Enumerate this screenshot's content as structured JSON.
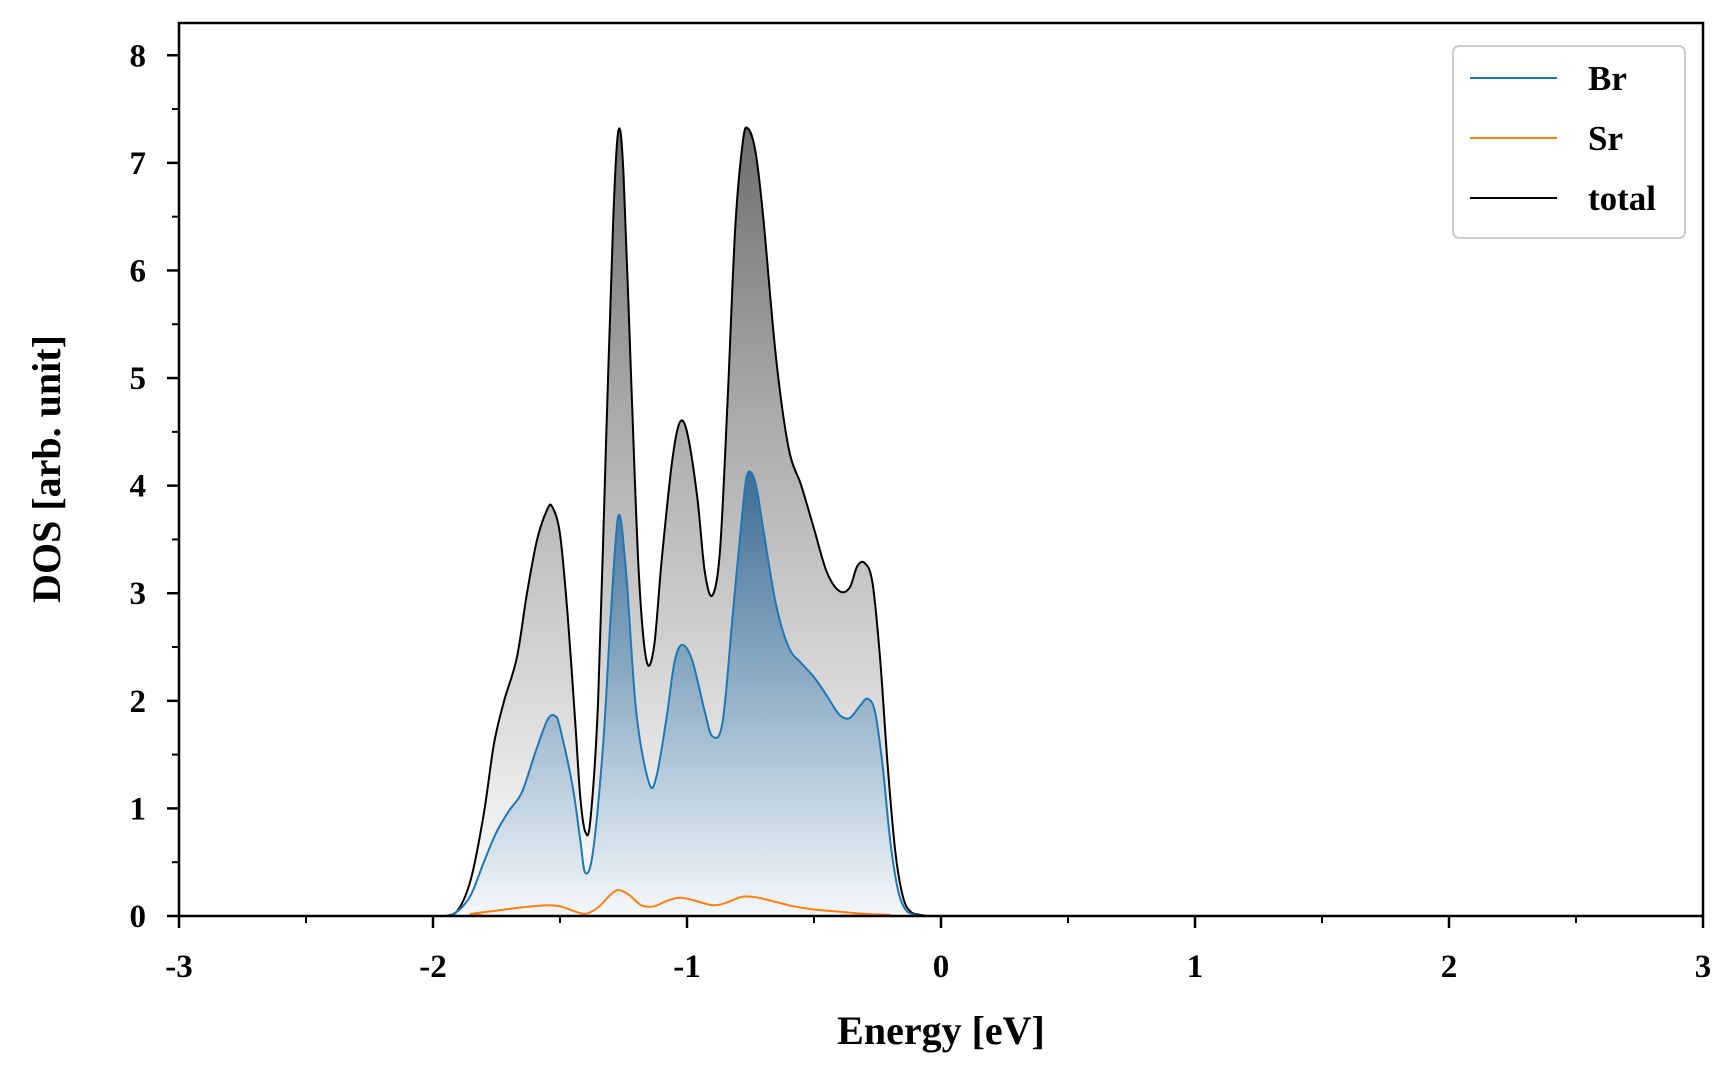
{
  "chart_data": {
    "type": "area",
    "title": "",
    "xlabel": "Energy [eV]",
    "ylabel": "DOS [arb. unit]",
    "xlim": [
      -3,
      3
    ],
    "ylim": [
      0,
      8.3
    ],
    "x_ticks": [
      -3,
      -2,
      -1,
      0,
      1,
      2,
      3
    ],
    "x_tick_labels": [
      "-3",
      "-2",
      "-1",
      "0",
      "1",
      "2",
      "3"
    ],
    "y_ticks": [
      0,
      1,
      2,
      3,
      4,
      5,
      6,
      7,
      8
    ],
    "y_tick_labels": [
      "0",
      "1",
      "2",
      "3",
      "4",
      "5",
      "6",
      "7",
      "8"
    ],
    "grid": false,
    "legend_position": "top-right",
    "series": [
      {
        "name": "Br",
        "color": "#1f77b4",
        "filled": true,
        "points": [
          [
            -3.0,
            0
          ],
          [
            -2.0,
            0
          ],
          [
            -1.95,
            0.0
          ],
          [
            -1.9,
            0.05
          ],
          [
            -1.85,
            0.2
          ],
          [
            -1.8,
            0.5
          ],
          [
            -1.75,
            0.78
          ],
          [
            -1.7,
            0.98
          ],
          [
            -1.65,
            1.15
          ],
          [
            -1.6,
            1.5
          ],
          [
            -1.55,
            1.82
          ],
          [
            -1.52,
            1.86
          ],
          [
            -1.5,
            1.75
          ],
          [
            -1.45,
            1.2
          ],
          [
            -1.42,
            0.7
          ],
          [
            -1.4,
            0.4
          ],
          [
            -1.37,
            0.6
          ],
          [
            -1.33,
            1.6
          ],
          [
            -1.3,
            2.8
          ],
          [
            -1.27,
            3.72
          ],
          [
            -1.24,
            3.2
          ],
          [
            -1.2,
            1.9
          ],
          [
            -1.15,
            1.24
          ],
          [
            -1.12,
            1.3
          ],
          [
            -1.08,
            1.85
          ],
          [
            -1.05,
            2.35
          ],
          [
            -1.02,
            2.52
          ],
          [
            -0.98,
            2.38
          ],
          [
            -0.93,
            1.9
          ],
          [
            -0.9,
            1.67
          ],
          [
            -0.86,
            1.8
          ],
          [
            -0.82,
            2.8
          ],
          [
            -0.78,
            3.8
          ],
          [
            -0.76,
            4.12
          ],
          [
            -0.73,
            4.02
          ],
          [
            -0.7,
            3.6
          ],
          [
            -0.65,
            2.9
          ],
          [
            -0.6,
            2.5
          ],
          [
            -0.55,
            2.35
          ],
          [
            -0.5,
            2.22
          ],
          [
            -0.45,
            2.05
          ],
          [
            -0.4,
            1.87
          ],
          [
            -0.36,
            1.84
          ],
          [
            -0.32,
            1.95
          ],
          [
            -0.29,
            2.02
          ],
          [
            -0.26,
            1.9
          ],
          [
            -0.23,
            1.4
          ],
          [
            -0.2,
            0.7
          ],
          [
            -0.17,
            0.25
          ],
          [
            -0.14,
            0.06
          ],
          [
            -0.1,
            0.01
          ],
          [
            -0.05,
            0
          ],
          [
            0.0,
            0
          ],
          [
            3.0,
            0
          ]
        ]
      },
      {
        "name": "Sr",
        "color": "#ff7f0e",
        "filled": false,
        "points": [
          [
            -3.0,
            0
          ],
          [
            -1.9,
            0
          ],
          [
            -1.85,
            0.02
          ],
          [
            -1.75,
            0.05
          ],
          [
            -1.65,
            0.08
          ],
          [
            -1.55,
            0.1
          ],
          [
            -1.5,
            0.09
          ],
          [
            -1.45,
            0.05
          ],
          [
            -1.4,
            0.02
          ],
          [
            -1.35,
            0.08
          ],
          [
            -1.3,
            0.2
          ],
          [
            -1.27,
            0.24
          ],
          [
            -1.23,
            0.2
          ],
          [
            -1.18,
            0.1
          ],
          [
            -1.13,
            0.09
          ],
          [
            -1.08,
            0.14
          ],
          [
            -1.03,
            0.17
          ],
          [
            -0.98,
            0.15
          ],
          [
            -0.9,
            0.1
          ],
          [
            -0.85,
            0.12
          ],
          [
            -0.78,
            0.18
          ],
          [
            -0.72,
            0.17
          ],
          [
            -0.65,
            0.13
          ],
          [
            -0.58,
            0.09
          ],
          [
            -0.5,
            0.06
          ],
          [
            -0.4,
            0.04
          ],
          [
            -0.3,
            0.02
          ],
          [
            -0.2,
            0.01
          ],
          [
            -0.15,
            0
          ],
          [
            3.0,
            0
          ]
        ]
      },
      {
        "name": "total",
        "color": "#000000",
        "filled": true,
        "points": [
          [
            -3.0,
            0
          ],
          [
            -2.0,
            0
          ],
          [
            -1.95,
            0.0
          ],
          [
            -1.9,
            0.06
          ],
          [
            -1.85,
            0.35
          ],
          [
            -1.8,
            0.95
          ],
          [
            -1.76,
            1.6
          ],
          [
            -1.72,
            2.0
          ],
          [
            -1.67,
            2.4
          ],
          [
            -1.63,
            3.0
          ],
          [
            -1.59,
            3.5
          ],
          [
            -1.55,
            3.78
          ],
          [
            -1.53,
            3.8
          ],
          [
            -1.5,
            3.55
          ],
          [
            -1.47,
            2.8
          ],
          [
            -1.44,
            1.8
          ],
          [
            -1.42,
            1.1
          ],
          [
            -1.4,
            0.78
          ],
          [
            -1.38,
            0.9
          ],
          [
            -1.35,
            2.0
          ],
          [
            -1.32,
            4.3
          ],
          [
            -1.29,
            6.5
          ],
          [
            -1.27,
            7.3
          ],
          [
            -1.25,
            6.9
          ],
          [
            -1.22,
            5.0
          ],
          [
            -1.19,
            3.2
          ],
          [
            -1.16,
            2.38
          ],
          [
            -1.13,
            2.5
          ],
          [
            -1.1,
            3.3
          ],
          [
            -1.06,
            4.2
          ],
          [
            -1.03,
            4.58
          ],
          [
            -1.0,
            4.5
          ],
          [
            -0.96,
            3.9
          ],
          [
            -0.93,
            3.2
          ],
          [
            -0.9,
            2.98
          ],
          [
            -0.87,
            3.4
          ],
          [
            -0.84,
            4.8
          ],
          [
            -0.81,
            6.4
          ],
          [
            -0.78,
            7.2
          ],
          [
            -0.76,
            7.32
          ],
          [
            -0.73,
            7.1
          ],
          [
            -0.7,
            6.5
          ],
          [
            -0.65,
            5.2
          ],
          [
            -0.6,
            4.35
          ],
          [
            -0.55,
            4.0
          ],
          [
            -0.5,
            3.6
          ],
          [
            -0.45,
            3.2
          ],
          [
            -0.4,
            3.02
          ],
          [
            -0.36,
            3.05
          ],
          [
            -0.33,
            3.25
          ],
          [
            -0.3,
            3.28
          ],
          [
            -0.27,
            3.1
          ],
          [
            -0.24,
            2.4
          ],
          [
            -0.21,
            1.4
          ],
          [
            -0.18,
            0.6
          ],
          [
            -0.15,
            0.18
          ],
          [
            -0.12,
            0.04
          ],
          [
            -0.08,
            0.01
          ],
          [
            -0.05,
            0
          ],
          [
            0.0,
            0
          ],
          [
            3.0,
            0
          ]
        ]
      }
    ]
  }
}
